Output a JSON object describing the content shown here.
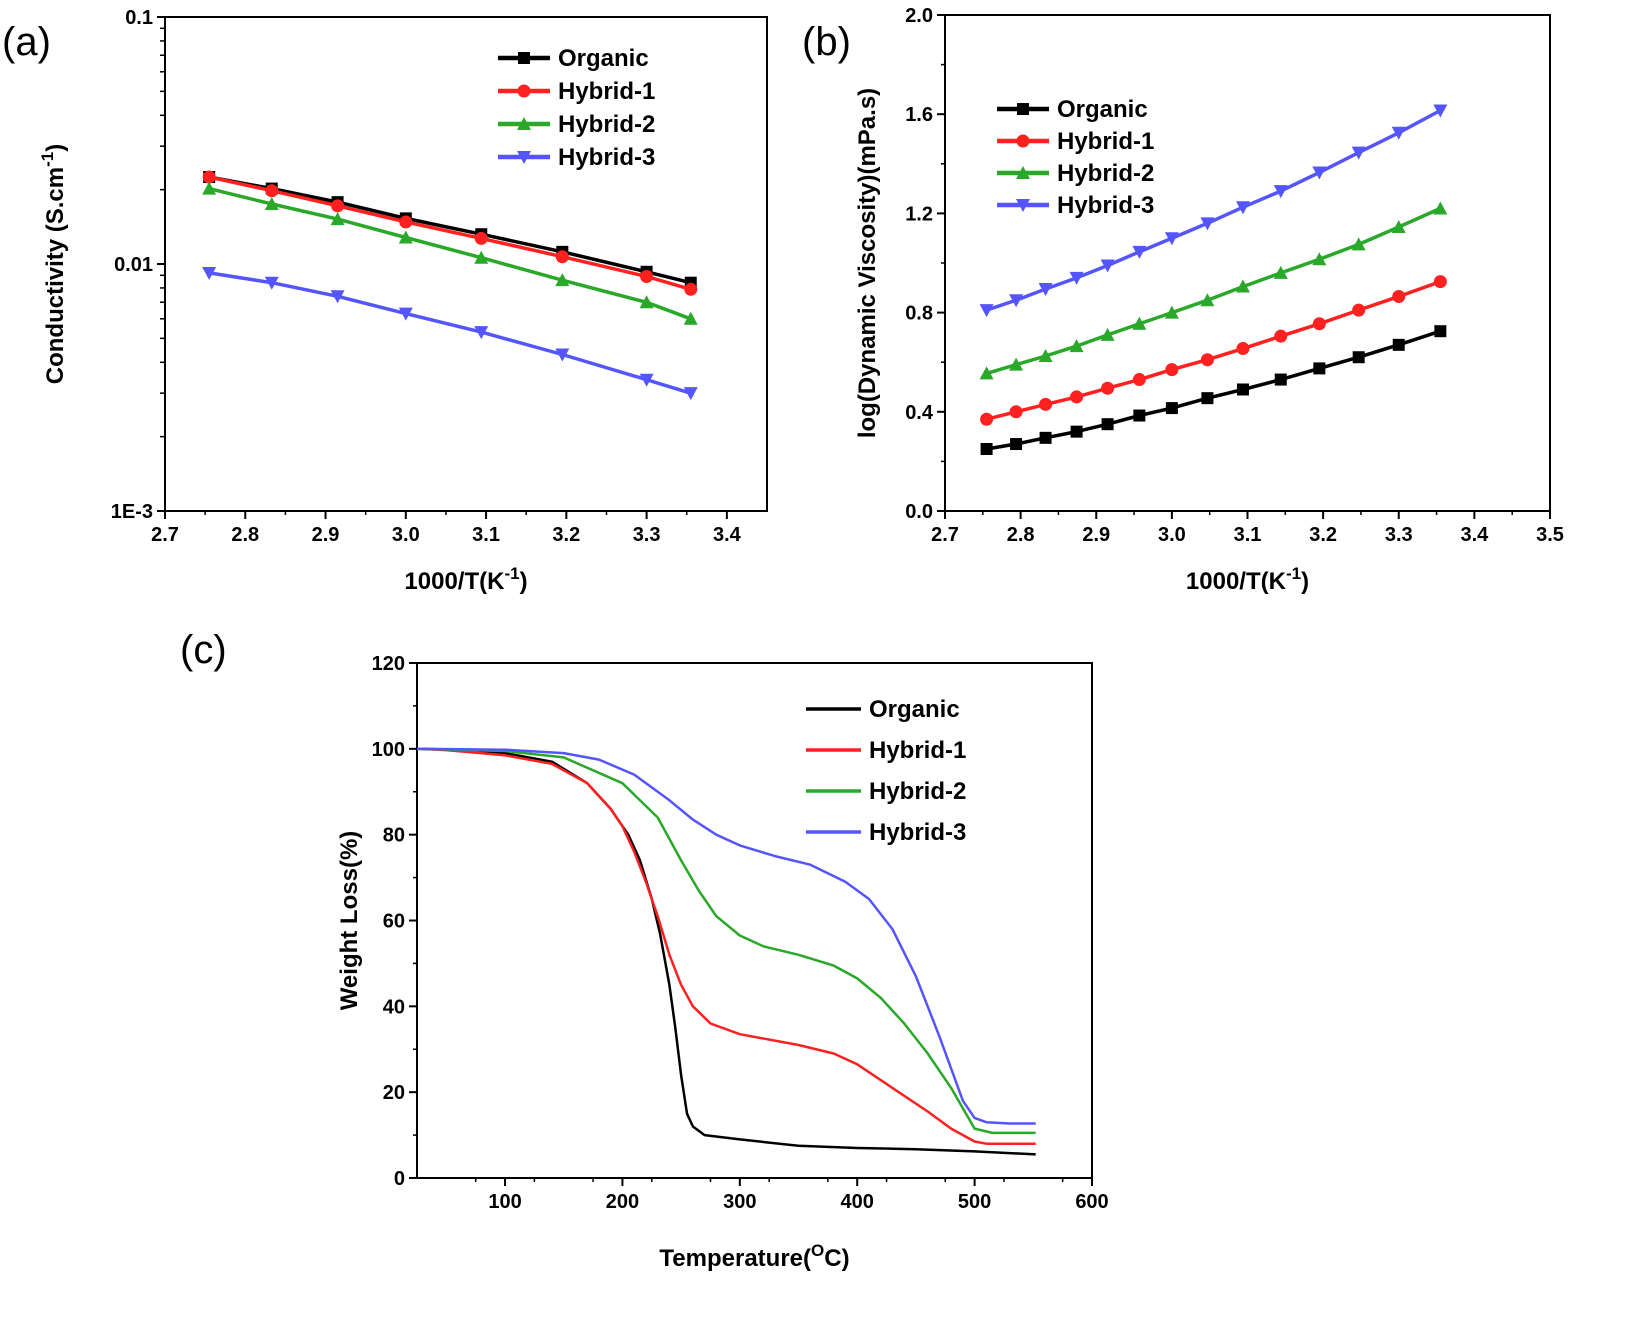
{
  "chart_data": [
    {
      "panel_label": "(a)",
      "type": "line",
      "xlabel": "1000/T(K",
      "xlabel_sup": "-1",
      "xlabel_end": ")",
      "ylabel": "Conductivity (S.cm",
      "ylabel_sup": "-1",
      "ylabel_end": ")",
      "xlim": [
        2.7,
        3.45
      ],
      "ylim": [
        0.001,
        0.1
      ],
      "yscale": "log",
      "xticks": [
        2.7,
        2.8,
        2.9,
        3.0,
        3.1,
        3.2,
        3.3,
        3.4
      ],
      "xtick_labels": [
        "2.7",
        "2.8",
        "2.9",
        "3.0",
        "3.1",
        "3.2",
        "3.3",
        "3.4"
      ],
      "yticks": [
        0.001,
        0.01,
        0.1
      ],
      "ytick_labels": [
        "1E-3",
        "0.01",
        "0.1"
      ],
      "legend_position": "top-right",
      "x": [
        2.755,
        2.833,
        2.915,
        3.0,
        3.094,
        3.195,
        3.3,
        3.355
      ],
      "series": [
        {
          "name": "Organic",
          "color": "#000000",
          "marker": "square",
          "values": [
            0.0225,
            0.0202,
            0.0178,
            0.0153,
            0.0132,
            0.0112,
            0.0093,
            0.0084
          ]
        },
        {
          "name": "Hybrid-1",
          "color": "#ff2020",
          "marker": "circle",
          "values": [
            0.0225,
            0.0198,
            0.0172,
            0.0148,
            0.0127,
            0.0107,
            0.0089,
            0.0079
          ]
        },
        {
          "name": "Hybrid-2",
          "color": "#29a829",
          "marker": "triangle-up",
          "values": [
            0.0202,
            0.0175,
            0.0152,
            0.0128,
            0.0106,
            0.0086,
            0.007,
            0.006
          ]
        },
        {
          "name": "Hybrid-3",
          "color": "#5555ff",
          "marker": "triangle-down",
          "values": [
            0.0092,
            0.0084,
            0.0074,
            0.0063,
            0.0053,
            0.0043,
            0.0034,
            0.003
          ]
        }
      ]
    },
    {
      "panel_label": "(b)",
      "type": "line",
      "xlabel": "1000/T(K",
      "xlabel_sup": "-1",
      "xlabel_end": ")",
      "ylabel": "log(Dynamic Viscosity)(mPa.s)",
      "xlim": [
        2.7,
        3.5
      ],
      "ylim": [
        0.0,
        2.0
      ],
      "xticks": [
        2.7,
        2.8,
        2.9,
        3.0,
        3.1,
        3.2,
        3.3,
        3.4,
        3.5
      ],
      "xtick_labels": [
        "2.7",
        "2.8",
        "2.9",
        "3.0",
        "3.1",
        "3.2",
        "3.3",
        "3.4",
        "3.5"
      ],
      "yticks": [
        0.0,
        0.4,
        0.8,
        1.2,
        1.6,
        2.0
      ],
      "ytick_labels": [
        "0.0",
        "0.4",
        "0.8",
        "1.2",
        "1.6",
        "2.0"
      ],
      "legend_position": "top-left",
      "x": [
        2.755,
        2.794,
        2.833,
        2.874,
        2.915,
        2.957,
        3.0,
        3.047,
        3.094,
        3.144,
        3.195,
        3.247,
        3.3,
        3.355
      ],
      "series": [
        {
          "name": "Organic",
          "color": "#000000",
          "marker": "square",
          "values": [
            0.25,
            0.27,
            0.295,
            0.32,
            0.35,
            0.385,
            0.415,
            0.455,
            0.49,
            0.53,
            0.575,
            0.62,
            0.67,
            0.725
          ]
        },
        {
          "name": "Hybrid-1",
          "color": "#ff2020",
          "marker": "circle",
          "values": [
            0.37,
            0.4,
            0.43,
            0.46,
            0.495,
            0.53,
            0.57,
            0.61,
            0.655,
            0.705,
            0.755,
            0.81,
            0.865,
            0.925
          ]
        },
        {
          "name": "Hybrid-2",
          "color": "#29a829",
          "marker": "triangle-up",
          "values": [
            0.555,
            0.59,
            0.625,
            0.665,
            0.71,
            0.755,
            0.8,
            0.85,
            0.905,
            0.96,
            1.015,
            1.075,
            1.145,
            1.22
          ]
        },
        {
          "name": "Hybrid-3",
          "color": "#5555ff",
          "marker": "triangle-down",
          "values": [
            0.81,
            0.85,
            0.895,
            0.94,
            0.99,
            1.045,
            1.1,
            1.16,
            1.225,
            1.29,
            1.365,
            1.445,
            1.525,
            1.615
          ]
        }
      ]
    },
    {
      "panel_label": "(c)",
      "type": "line",
      "xlabel": "Temperature(",
      "xlabel_sup": "O",
      "xlabel_end": "C)",
      "ylabel": "Weight Loss(%)",
      "xlim": [
        25,
        600
      ],
      "ylim": [
        0,
        120
      ],
      "xticks": [
        100,
        200,
        300,
        400,
        500,
        600
      ],
      "xtick_labels": [
        "100",
        "200",
        "300",
        "400",
        "500",
        "600"
      ],
      "yticks": [
        0,
        20,
        40,
        60,
        80,
        100,
        120
      ],
      "ytick_labels": [
        "0",
        "20",
        "40",
        "60",
        "80",
        "100",
        "120"
      ],
      "legend_position": "top-right",
      "series": [
        {
          "name": "Organic",
          "color": "#000000",
          "x": [
            25,
            50,
            100,
            140,
            170,
            190,
            205,
            215,
            225,
            232,
            240,
            245,
            250,
            255,
            260,
            270,
            300,
            350,
            400,
            450,
            500,
            552
          ],
          "values": [
            100,
            99.8,
            99,
            97,
            92,
            86,
            80,
            74,
            65,
            57,
            45,
            35,
            24,
            15,
            12,
            10,
            9,
            7.5,
            7,
            6.7,
            6.2,
            5.5
          ]
        },
        {
          "name": "Hybrid-1",
          "color": "#ff2020",
          "x": [
            25,
            50,
            100,
            140,
            170,
            190,
            200,
            210,
            220,
            230,
            240,
            250,
            260,
            275,
            300,
            350,
            380,
            400,
            430,
            460,
            480,
            500,
            510,
            552
          ],
          "values": [
            100,
            99.7,
            98.5,
            96.5,
            92,
            86,
            82,
            76,
            69,
            61,
            52,
            45,
            40,
            36,
            33.5,
            31,
            29,
            26.5,
            21,
            15.5,
            11.5,
            8.5,
            8,
            8
          ]
        },
        {
          "name": "Hybrid-2",
          "color": "#29a829",
          "x": [
            25,
            100,
            150,
            200,
            230,
            250,
            265,
            280,
            300,
            320,
            350,
            380,
            400,
            420,
            440,
            460,
            480,
            500,
            515,
            552
          ],
          "values": [
            100,
            99.5,
            98,
            92,
            84,
            74,
            67,
            61,
            56.5,
            54,
            52,
            49.5,
            46.5,
            42,
            36,
            29,
            21,
            11.5,
            10.5,
            10.5
          ]
        },
        {
          "name": "Hybrid-3",
          "color": "#5555ff",
          "x": [
            25,
            100,
            150,
            180,
            210,
            240,
            260,
            280,
            300,
            330,
            360,
            390,
            410,
            430,
            450,
            470,
            490,
            500,
            510,
            530,
            552
          ],
          "values": [
            100,
            99.8,
            99,
            97.5,
            94,
            88,
            83.5,
            80,
            77.5,
            75,
            73,
            69,
            65,
            58,
            47,
            33,
            18,
            14,
            13,
            12.7,
            12.7
          ]
        }
      ]
    }
  ]
}
